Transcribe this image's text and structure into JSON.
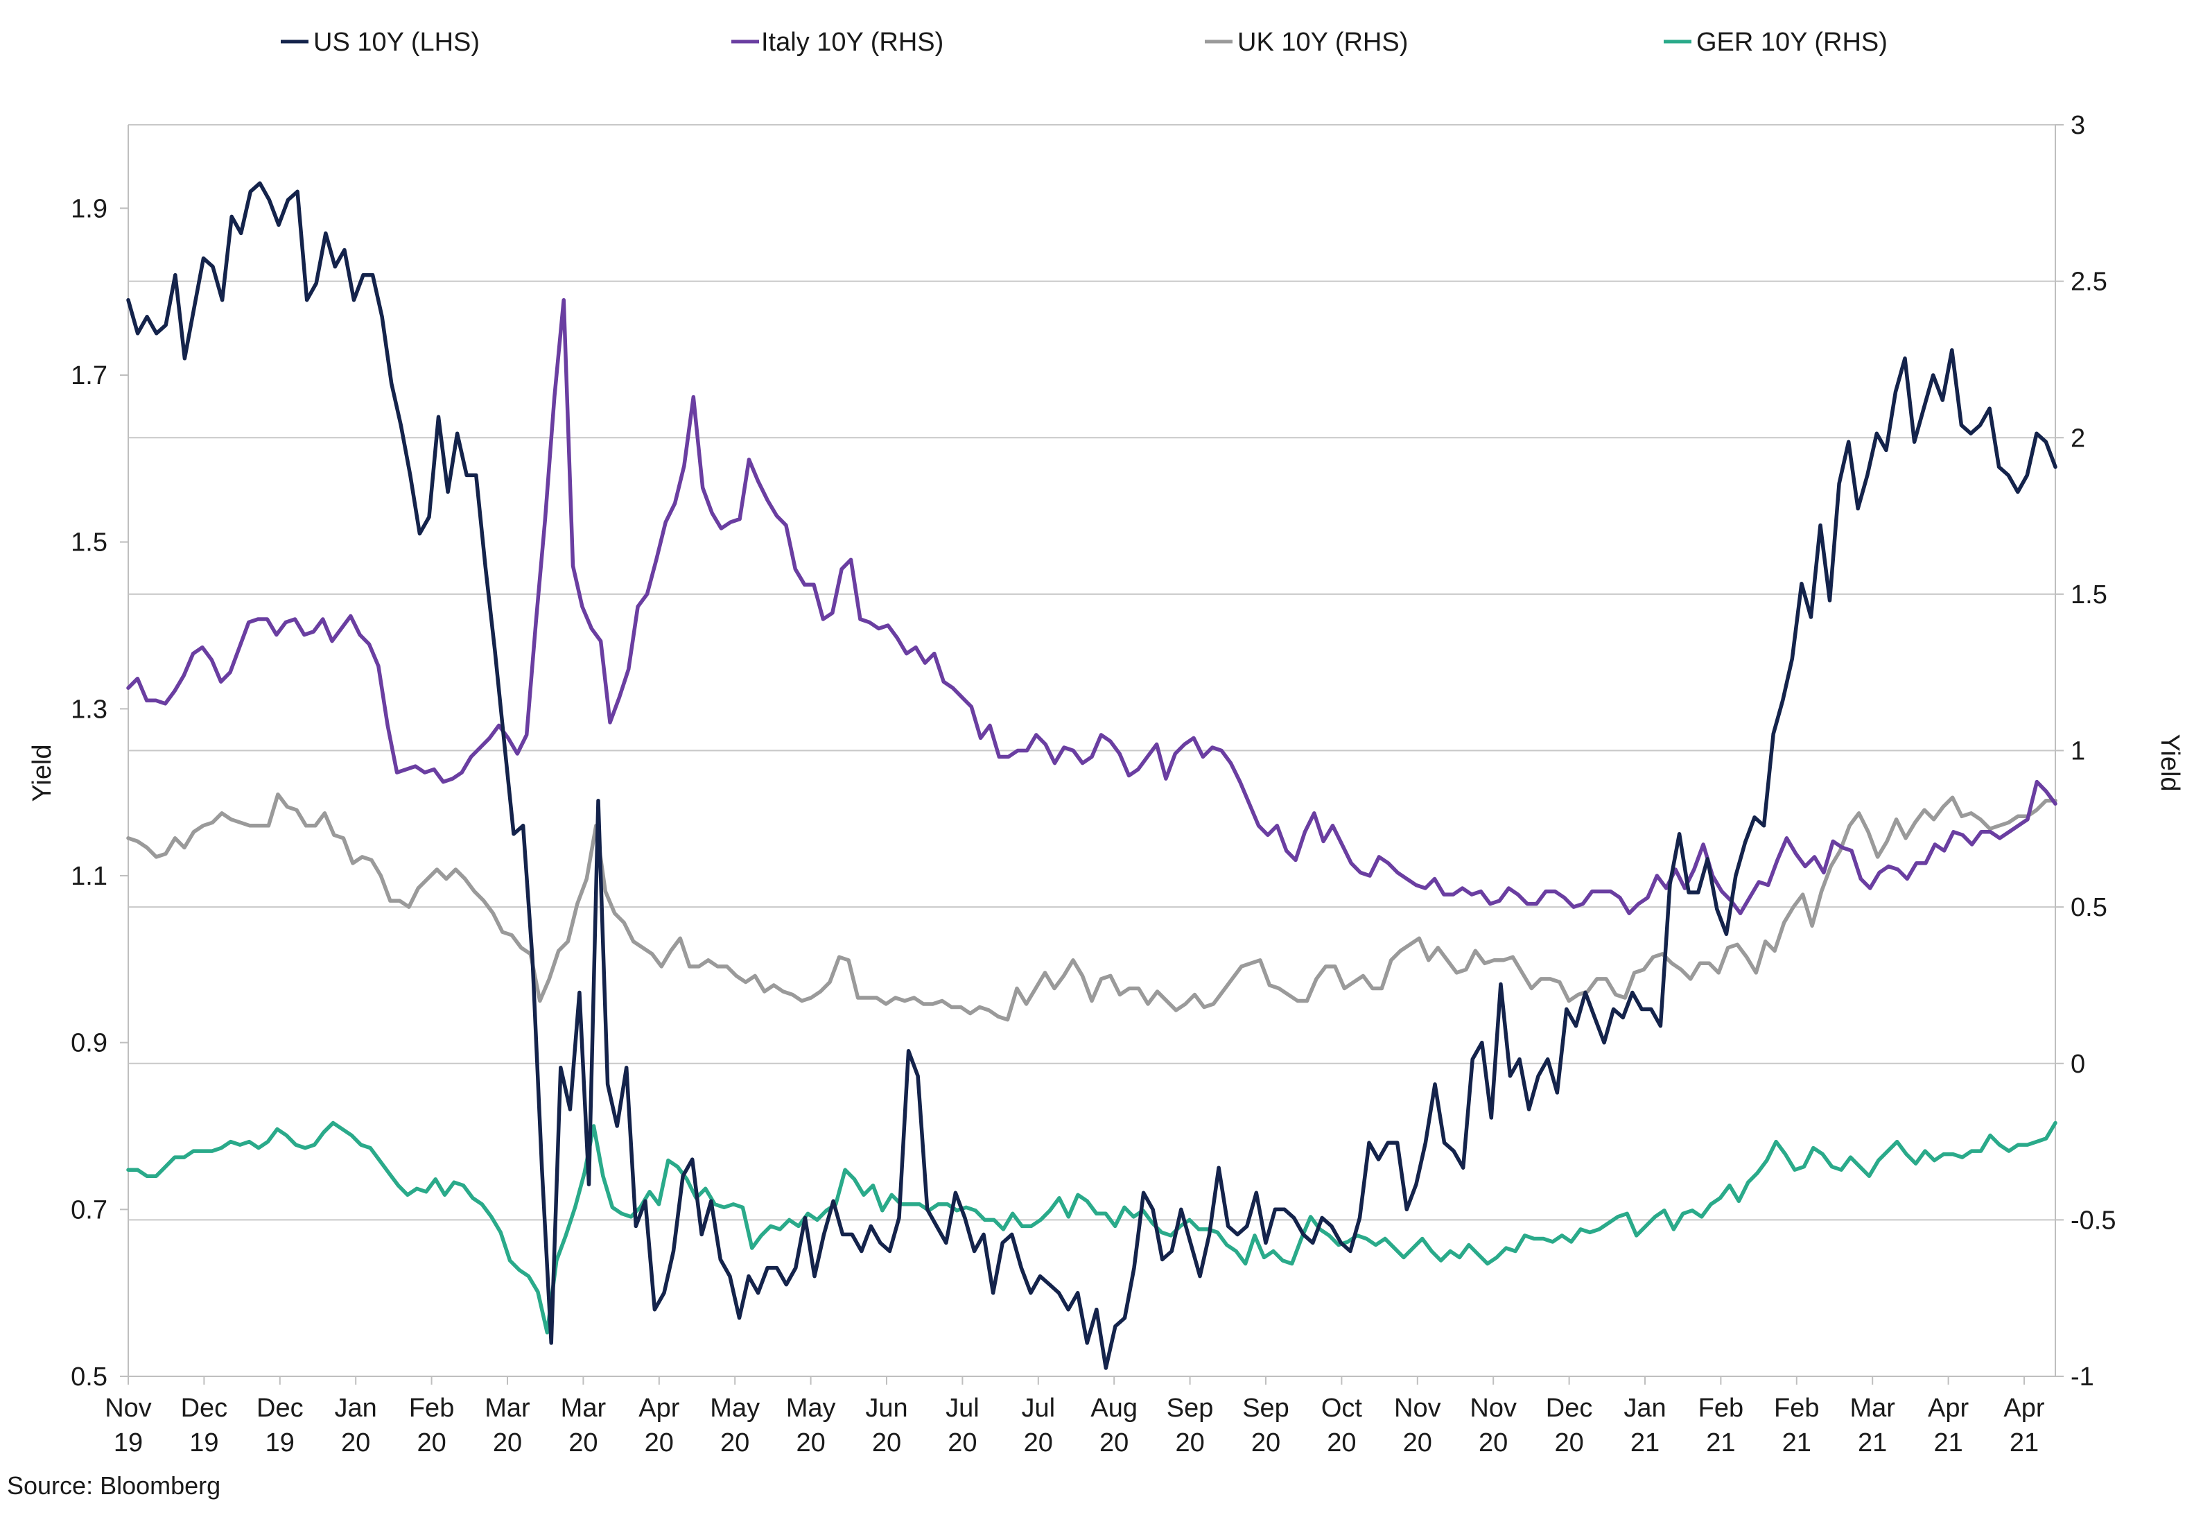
{
  "source": "Source: Bloomberg",
  "chart_data": {
    "type": "line",
    "title": "",
    "ylabel_left": "Yield",
    "ylabel_right": "Yield",
    "ylim_left": [
      0.5,
      2.0
    ],
    "ylim_right": [
      -1,
      3
    ],
    "yticks_left": [
      "0.5",
      "0.7",
      "0.9",
      "1.1",
      "1.3",
      "1.5",
      "1.7",
      "1.9"
    ],
    "yticks_right": [
      "-1",
      "-0.5",
      "0",
      "0.5",
      "1",
      "1.5",
      "2",
      "2.5",
      "3"
    ],
    "x_ticks": [
      {
        "month": "Nov",
        "year": "19"
      },
      {
        "month": "Dec",
        "year": "19"
      },
      {
        "month": "Dec",
        "year": "19"
      },
      {
        "month": "Jan",
        "year": "20"
      },
      {
        "month": "Feb",
        "year": "20"
      },
      {
        "month": "Mar",
        "year": "20"
      },
      {
        "month": "Mar",
        "year": "20"
      },
      {
        "month": "Apr",
        "year": "20"
      },
      {
        "month": "May",
        "year": "20"
      },
      {
        "month": "May",
        "year": "20"
      },
      {
        "month": "Jun",
        "year": "20"
      },
      {
        "month": "Jul",
        "year": "20"
      },
      {
        "month": "Jul",
        "year": "20"
      },
      {
        "month": "Aug",
        "year": "20"
      },
      {
        "month": "Sep",
        "year": "20"
      },
      {
        "month": "Sep",
        "year": "20"
      },
      {
        "month": "Oct",
        "year": "20"
      },
      {
        "month": "Nov",
        "year": "20"
      },
      {
        "month": "Nov",
        "year": "20"
      },
      {
        "month": "Dec",
        "year": "20"
      },
      {
        "month": "Jan",
        "year": "21"
      },
      {
        "month": "Feb",
        "year": "21"
      },
      {
        "month": "Feb",
        "year": "21"
      },
      {
        "month": "Mar",
        "year": "21"
      },
      {
        "month": "Apr",
        "year": "21"
      },
      {
        "month": "Apr",
        "year": "21"
      }
    ],
    "legend_position": "top",
    "grid": "horizontal",
    "series": [
      {
        "name": "US 10Y (LHS)",
        "axis": "left",
        "color": "#14234b",
        "values": [
          1.79,
          1.75,
          1.77,
          1.75,
          1.76,
          1.82,
          1.72,
          1.78,
          1.84,
          1.83,
          1.79,
          1.89,
          1.87,
          1.92,
          1.93,
          1.91,
          1.88,
          1.91,
          1.92,
          1.79,
          1.81,
          1.87,
          1.83,
          1.85,
          1.79,
          1.82,
          1.82,
          1.77,
          1.69,
          1.64,
          1.58,
          1.51,
          1.53,
          1.65,
          1.56,
          1.63,
          1.58,
          1.58,
          1.47,
          1.37,
          1.26,
          1.15,
          1.16,
          1.0,
          0.75,
          0.54,
          0.87,
          0.82,
          0.96,
          0.73,
          1.19,
          0.85,
          0.8,
          0.87,
          0.68,
          0.71,
          0.58,
          0.6,
          0.65,
          0.74,
          0.76,
          0.67,
          0.71,
          0.64,
          0.62,
          0.57,
          0.62,
          0.6,
          0.63,
          0.63,
          0.61,
          0.63,
          0.69,
          0.62,
          0.67,
          0.71,
          0.67,
          0.67,
          0.65,
          0.68,
          0.66,
          0.65,
          0.69,
          0.89,
          0.86,
          0.7,
          0.68,
          0.66,
          0.72,
          0.69,
          0.65,
          0.67,
          0.6,
          0.66,
          0.67,
          0.63,
          0.6,
          0.62,
          0.61,
          0.6,
          0.58,
          0.6,
          0.54,
          0.58,
          0.51,
          0.56,
          0.57,
          0.63,
          0.72,
          0.7,
          0.64,
          0.65,
          0.7,
          0.66,
          0.62,
          0.67,
          0.75,
          0.68,
          0.67,
          0.68,
          0.72,
          0.66,
          0.7,
          0.7,
          0.69,
          0.67,
          0.66,
          0.69,
          0.68,
          0.66,
          0.65,
          0.69,
          0.78,
          0.76,
          0.78,
          0.78,
          0.7,
          0.73,
          0.78,
          0.85,
          0.78,
          0.77,
          0.75,
          0.88,
          0.9,
          0.81,
          0.97,
          0.86,
          0.88,
          0.82,
          0.86,
          0.88,
          0.84,
          0.94,
          0.92,
          0.96,
          0.93,
          0.9,
          0.94,
          0.93,
          0.96,
          0.94,
          0.94,
          0.92,
          1.09,
          1.15,
          1.08,
          1.08,
          1.12,
          1.06,
          1.03,
          1.1,
          1.14,
          1.17,
          1.16,
          1.27,
          1.31,
          1.36,
          1.45,
          1.41,
          1.52,
          1.43,
          1.57,
          1.62,
          1.54,
          1.58,
          1.63,
          1.61,
          1.68,
          1.72,
          1.62,
          1.66,
          1.7,
          1.67,
          1.73,
          1.64,
          1.63,
          1.64,
          1.66,
          1.59,
          1.58,
          1.56,
          1.58,
          1.63,
          1.62,
          1.59
        ]
      },
      {
        "name": "Italy 10Y (RHS)",
        "axis": "right",
        "color": "#6a3ea1",
        "values": [
          1.2,
          1.23,
          1.16,
          1.16,
          1.15,
          1.19,
          1.24,
          1.31,
          1.33,
          1.29,
          1.22,
          1.25,
          1.33,
          1.41,
          1.42,
          1.42,
          1.37,
          1.41,
          1.42,
          1.37,
          1.38,
          1.42,
          1.35,
          1.39,
          1.43,
          1.37,
          1.34,
          1.27,
          1.08,
          0.93,
          0.94,
          0.95,
          0.93,
          0.94,
          0.9,
          0.91,
          0.93,
          0.98,
          1.01,
          1.04,
          1.08,
          1.04,
          0.99,
          1.05,
          1.41,
          1.74,
          2.13,
          2.44,
          1.59,
          1.46,
          1.39,
          1.35,
          1.09,
          1.17,
          1.26,
          1.46,
          1.5,
          1.61,
          1.73,
          1.79,
          1.91,
          2.13,
          1.84,
          1.76,
          1.71,
          1.73,
          1.74,
          1.93,
          1.86,
          1.8,
          1.75,
          1.72,
          1.58,
          1.53,
          1.53,
          1.42,
          1.44,
          1.58,
          1.61,
          1.42,
          1.41,
          1.39,
          1.4,
          1.36,
          1.31,
          1.33,
          1.28,
          1.31,
          1.22,
          1.2,
          1.17,
          1.14,
          1.04,
          1.08,
          0.98,
          0.98,
          1.0,
          1.0,
          1.05,
          1.02,
          0.96,
          1.01,
          1.0,
          0.96,
          0.98,
          1.05,
          1.03,
          0.99,
          0.92,
          0.94,
          0.98,
          1.02,
          0.91,
          0.99,
          1.02,
          1.04,
          0.98,
          1.01,
          1.0,
          0.96,
          0.9,
          0.83,
          0.76,
          0.73,
          0.76,
          0.68,
          0.65,
          0.74,
          0.8,
          0.71,
          0.76,
          0.7,
          0.64,
          0.61,
          0.6,
          0.66,
          0.64,
          0.61,
          0.59,
          0.57,
          0.56,
          0.59,
          0.54,
          0.54,
          0.56,
          0.54,
          0.55,
          0.51,
          0.52,
          0.56,
          0.54,
          0.51,
          0.51,
          0.55,
          0.55,
          0.53,
          0.5,
          0.51,
          0.55,
          0.55,
          0.55,
          0.53,
          0.48,
          0.51,
          0.53,
          0.6,
          0.56,
          0.62,
          0.56,
          0.62,
          0.7,
          0.6,
          0.55,
          0.52,
          0.48,
          0.53,
          0.58,
          0.57,
          0.65,
          0.72,
          0.67,
          0.63,
          0.66,
          0.61,
          0.71,
          0.69,
          0.68,
          0.59,
          0.56,
          0.61,
          0.63,
          0.62,
          0.59,
          0.64,
          0.64,
          0.7,
          0.68,
          0.74,
          0.73,
          0.7,
          0.74,
          0.74,
          0.72,
          0.74,
          0.76,
          0.78,
          0.9,
          0.87,
          0.83
        ]
      },
      {
        "name": "UK 10Y (RHS)",
        "axis": "right",
        "color": "#9a9a9a",
        "values": [
          0.72,
          0.71,
          0.69,
          0.66,
          0.67,
          0.72,
          0.69,
          0.74,
          0.76,
          0.77,
          0.8,
          0.78,
          0.77,
          0.76,
          0.76,
          0.76,
          0.86,
          0.82,
          0.81,
          0.76,
          0.76,
          0.8,
          0.73,
          0.72,
          0.64,
          0.66,
          0.65,
          0.6,
          0.52,
          0.52,
          0.5,
          0.56,
          0.59,
          0.62,
          0.59,
          0.62,
          0.59,
          0.55,
          0.52,
          0.48,
          0.42,
          0.41,
          0.37,
          0.35,
          0.2,
          0.27,
          0.36,
          0.39,
          0.51,
          0.59,
          0.76,
          0.55,
          0.48,
          0.45,
          0.39,
          0.37,
          0.35,
          0.31,
          0.36,
          0.4,
          0.31,
          0.31,
          0.33,
          0.31,
          0.31,
          0.28,
          0.26,
          0.28,
          0.23,
          0.25,
          0.23,
          0.22,
          0.2,
          0.21,
          0.23,
          0.26,
          0.34,
          0.33,
          0.21,
          0.21,
          0.21,
          0.19,
          0.21,
          0.2,
          0.21,
          0.19,
          0.19,
          0.2,
          0.18,
          0.18,
          0.16,
          0.18,
          0.17,
          0.15,
          0.14,
          0.24,
          0.19,
          0.24,
          0.29,
          0.24,
          0.28,
          0.33,
          0.28,
          0.2,
          0.27,
          0.28,
          0.22,
          0.24,
          0.24,
          0.19,
          0.23,
          0.2,
          0.17,
          0.19,
          0.22,
          0.18,
          0.19,
          0.23,
          0.27,
          0.31,
          0.32,
          0.33,
          0.25,
          0.24,
          0.22,
          0.2,
          0.2,
          0.27,
          0.31,
          0.31,
          0.24,
          0.26,
          0.28,
          0.24,
          0.24,
          0.33,
          0.36,
          0.38,
          0.4,
          0.33,
          0.37,
          0.33,
          0.29,
          0.3,
          0.36,
          0.32,
          0.33,
          0.33,
          0.34,
          0.29,
          0.24,
          0.27,
          0.27,
          0.26,
          0.2,
          0.22,
          0.23,
          0.27,
          0.27,
          0.22,
          0.21,
          0.29,
          0.3,
          0.34,
          0.35,
          0.32,
          0.3,
          0.27,
          0.32,
          0.32,
          0.29,
          0.37,
          0.38,
          0.34,
          0.29,
          0.39,
          0.36,
          0.45,
          0.5,
          0.54,
          0.44,
          0.55,
          0.63,
          0.68,
          0.76,
          0.8,
          0.74,
          0.66,
          0.71,
          0.78,
          0.72,
          0.77,
          0.81,
          0.78,
          0.82,
          0.85,
          0.79,
          0.8,
          0.78,
          0.75,
          0.76,
          0.77,
          0.79,
          0.79,
          0.81,
          0.84,
          0.84
        ]
      },
      {
        "name": "GER 10Y (RHS)",
        "axis": "right",
        "color": "#2aaa8a",
        "values": [
          -0.34,
          -0.34,
          -0.36,
          -0.36,
          -0.33,
          -0.3,
          -0.3,
          -0.28,
          -0.28,
          -0.28,
          -0.27,
          -0.25,
          -0.26,
          -0.25,
          -0.27,
          -0.25,
          -0.21,
          -0.23,
          -0.26,
          -0.27,
          -0.26,
          -0.22,
          -0.19,
          -0.21,
          -0.23,
          -0.26,
          -0.27,
          -0.31,
          -0.35,
          -0.39,
          -0.42,
          -0.4,
          -0.41,
          -0.37,
          -0.42,
          -0.38,
          -0.39,
          -0.43,
          -0.45,
          -0.49,
          -0.54,
          -0.63,
          -0.66,
          -0.68,
          -0.73,
          -0.86,
          -0.63,
          -0.55,
          -0.46,
          -0.35,
          -0.2,
          -0.36,
          -0.46,
          -0.48,
          -0.49,
          -0.46,
          -0.41,
          -0.45,
          -0.31,
          -0.33,
          -0.37,
          -0.43,
          -0.4,
          -0.45,
          -0.46,
          -0.45,
          -0.46,
          -0.59,
          -0.55,
          -0.52,
          -0.53,
          -0.5,
          -0.52,
          -0.48,
          -0.5,
          -0.47,
          -0.45,
          -0.34,
          -0.37,
          -0.42,
          -0.39,
          -0.47,
          -0.42,
          -0.45,
          -0.45,
          -0.45,
          -0.47,
          -0.45,
          -0.45,
          -0.47,
          -0.46,
          -0.47,
          -0.5,
          -0.5,
          -0.53,
          -0.48,
          -0.52,
          -0.52,
          -0.5,
          -0.47,
          -0.43,
          -0.49,
          -0.42,
          -0.44,
          -0.48,
          -0.48,
          -0.52,
          -0.46,
          -0.49,
          -0.47,
          -0.51,
          -0.54,
          -0.55,
          -0.52,
          -0.5,
          -0.53,
          -0.53,
          -0.54,
          -0.58,
          -0.6,
          -0.64,
          -0.55,
          -0.62,
          -0.6,
          -0.63,
          -0.64,
          -0.56,
          -0.49,
          -0.53,
          -0.55,
          -0.58,
          -0.57,
          -0.55,
          -0.56,
          -0.58,
          -0.56,
          -0.59,
          -0.62,
          -0.59,
          -0.56,
          -0.6,
          -0.63,
          -0.6,
          -0.62,
          -0.58,
          -0.61,
          -0.64,
          -0.62,
          -0.59,
          -0.6,
          -0.55,
          -0.56,
          -0.56,
          -0.57,
          -0.55,
          -0.57,
          -0.53,
          -0.54,
          -0.53,
          -0.51,
          -0.49,
          -0.48,
          -0.55,
          -0.52,
          -0.49,
          -0.47,
          -0.53,
          -0.48,
          -0.47,
          -0.49,
          -0.45,
          -0.43,
          -0.39,
          -0.44,
          -0.38,
          -0.35,
          -0.31,
          -0.25,
          -0.29,
          -0.34,
          -0.33,
          -0.27,
          -0.29,
          -0.33,
          -0.34,
          -0.3,
          -0.33,
          -0.36,
          -0.31,
          -0.28,
          -0.25,
          -0.29,
          -0.32,
          -0.28,
          -0.31,
          -0.29,
          -0.29,
          -0.3,
          -0.28,
          -0.28,
          -0.23,
          -0.26,
          -0.28,
          -0.26,
          -0.26,
          -0.25,
          -0.24,
          -0.19
        ]
      }
    ]
  }
}
